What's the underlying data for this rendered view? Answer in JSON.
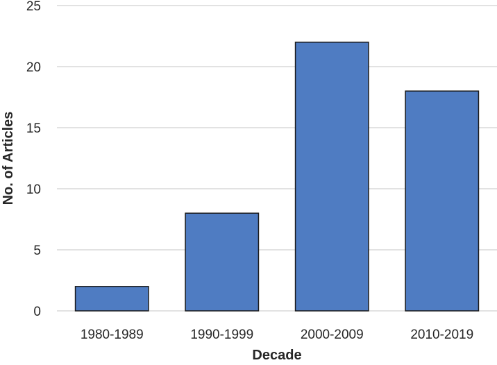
{
  "chart_data": {
    "type": "bar",
    "categories": [
      "1980-1989",
      "1990-1999",
      "2000-2009",
      "2010-2019"
    ],
    "values": [
      2,
      8,
      22,
      18
    ],
    "title": "",
    "xlabel": "Decade",
    "ylabel": "No. of Articles",
    "ylim": [
      0,
      25
    ],
    "yticks": [
      0,
      5,
      10,
      15,
      20,
      25
    ],
    "grid": true,
    "legend": "none",
    "colors": {
      "bar_fill": "#4f7cc2",
      "bar_stroke": "#1a1a1a",
      "grid": "#d0d0d0",
      "text": "#262626"
    }
  }
}
